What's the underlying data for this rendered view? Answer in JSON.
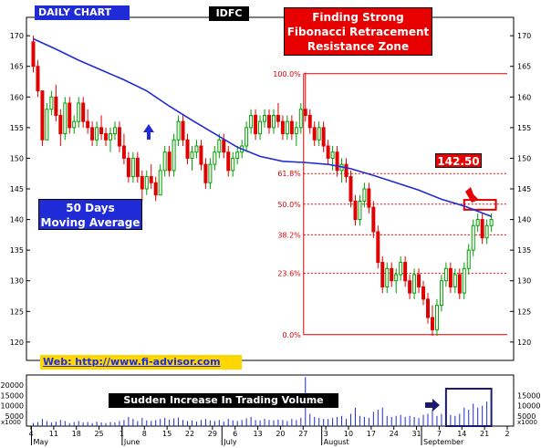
{
  "header": {
    "chart_period_label": "DAILY CHART",
    "ticker": "IDFC",
    "title_lines": [
      "Finding Strong",
      "Fibonacci Retracement",
      "Resistance Zone"
    ]
  },
  "annotations": {
    "ma_label_lines": [
      "50 Days",
      "Moving Average"
    ],
    "price_tag": "142.50",
    "web_link": "Web: http://www.fi-advisor.com",
    "volume_note": "Sudden Increase In Trading Volume"
  },
  "colors": {
    "up": "#00a000",
    "down": "#e00000",
    "ma": "#1f2bd6",
    "fib_line": "#e00000",
    "volume": "#1f2bd6",
    "label_bg_blue": "#1f2bd6",
    "label_bg_red": "#e60000",
    "web_bg": "#ffd700",
    "arrow_blue": "#1f2bd6",
    "arrow_red": "#e60000"
  },
  "chart_data": {
    "type": "candlestick",
    "price_axis": {
      "min": 117,
      "max": 173,
      "ticks": [
        120,
        125,
        130,
        135,
        140,
        145,
        150,
        155,
        160,
        165,
        170
      ],
      "both_sides": true
    },
    "volume_axis": {
      "ticks_left": [
        "20000",
        "15000",
        "10000",
        "5000",
        "x1000"
      ],
      "ticks_right": [
        "15000",
        "10000",
        "5000",
        "x1000"
      ],
      "tick_values": [
        20000,
        15000,
        10000,
        5000
      ],
      "max": 25000
    },
    "date_ticks": [
      "4",
      "11",
      "18",
      "25",
      "1",
      "8",
      "15",
      "22",
      "29",
      "6",
      "13",
      "20",
      "27",
      "3",
      "10",
      "17",
      "24",
      "31",
      "7",
      "14",
      "21",
      "2"
    ],
    "month_labels": [
      "May",
      "June",
      "July",
      "August",
      "September"
    ],
    "month_label_day_index": [
      0,
      20,
      42,
      64,
      86
    ],
    "total_days": 105,
    "fibonacci_levels": [
      {
        "label": "100.0%",
        "value": 163.8
      },
      {
        "label": "61.8%",
        "value": 147.5
      },
      {
        "label": "50.0%",
        "value": 142.5
      },
      {
        "label": "38.2%",
        "value": 137.5
      },
      {
        "label": "23.6%",
        "value": 131.2
      },
      {
        "label": "0.0%",
        "value": 121.2
      }
    ],
    "fib_start_day": 60,
    "resistance_zone": {
      "low": 141.6,
      "high": 143.2,
      "day_from": 95,
      "day_to": 102
    },
    "volume_highlight": {
      "day_from": 91,
      "day_to": 101
    },
    "moving_average_50": [
      [
        0,
        169.5
      ],
      [
        5,
        167.8
      ],
      [
        10,
        166.0
      ],
      [
        15,
        164.4
      ],
      [
        20,
        162.8
      ],
      [
        25,
        161.0
      ],
      [
        30,
        158.5
      ],
      [
        35,
        156.2
      ],
      [
        40,
        154.0
      ],
      [
        45,
        151.8
      ],
      [
        50,
        150.3
      ],
      [
        55,
        149.5
      ],
      [
        60,
        149.3
      ],
      [
        65,
        149.0
      ],
      [
        70,
        148.3
      ],
      [
        75,
        147.2
      ],
      [
        80,
        146.0
      ],
      [
        85,
        144.8
      ],
      [
        90,
        143.3
      ],
      [
        95,
        142.2
      ],
      [
        101,
        140.5
      ]
    ],
    "ohlc": [
      [
        169,
        170,
        164,
        165
      ],
      [
        165,
        166,
        160,
        161
      ],
      [
        161,
        161,
        152,
        153
      ],
      [
        153,
        159,
        153,
        158
      ],
      [
        158,
        161,
        157,
        160
      ],
      [
        160,
        162,
        156,
        157
      ],
      [
        157,
        158,
        152,
        154
      ],
      [
        154,
        160,
        153,
        159
      ],
      [
        159,
        160,
        154,
        155
      ],
      [
        155,
        157,
        154,
        156
      ],
      [
        156,
        160,
        155,
        159
      ],
      [
        159,
        160,
        155,
        156
      ],
      [
        156,
        158,
        154,
        155
      ],
      [
        155,
        156,
        152,
        153
      ],
      [
        153,
        156,
        152,
        155
      ],
      [
        155,
        157,
        153,
        154
      ],
      [
        154,
        155,
        152,
        153
      ],
      [
        153,
        155,
        151,
        154
      ],
      [
        154,
        156,
        153,
        155
      ],
      [
        155,
        156,
        151,
        152
      ],
      [
        152,
        154,
        149,
        150
      ],
      [
        150,
        151,
        146,
        147
      ],
      [
        147,
        151,
        146,
        150
      ],
      [
        150,
        151,
        146,
        147
      ],
      [
        147,
        148,
        143,
        145
      ],
      [
        145,
        148,
        144,
        147
      ],
      [
        147,
        149,
        145,
        146
      ],
      [
        146,
        147,
        143,
        144
      ],
      [
        144,
        149,
        144,
        148
      ],
      [
        148,
        152,
        147,
        151
      ],
      [
        151,
        152,
        147,
        148
      ],
      [
        148,
        154,
        147,
        153
      ],
      [
        153,
        157,
        152,
        156
      ],
      [
        156,
        157,
        152,
        153
      ],
      [
        153,
        154,
        149,
        150
      ],
      [
        150,
        152,
        148,
        151
      ],
      [
        151,
        153,
        150,
        152
      ],
      [
        152,
        153,
        148,
        149
      ],
      [
        149,
        150,
        145,
        146
      ],
      [
        146,
        150,
        145,
        149
      ],
      [
        149,
        152,
        148,
        151
      ],
      [
        151,
        154,
        150,
        153
      ],
      [
        153,
        154,
        150,
        151
      ],
      [
        151,
        152,
        147,
        148
      ],
      [
        148,
        151,
        147,
        150
      ],
      [
        150,
        152,
        149,
        151
      ],
      [
        151,
        153,
        150,
        152
      ],
      [
        152,
        156,
        151,
        155
      ],
      [
        155,
        158,
        154,
        157
      ],
      [
        157,
        158,
        153,
        154
      ],
      [
        154,
        157,
        153,
        156
      ],
      [
        156,
        158,
        155,
        157
      ],
      [
        157,
        158,
        154,
        155
      ],
      [
        155,
        158,
        154,
        157
      ],
      [
        157,
        159,
        155,
        156
      ],
      [
        156,
        157,
        153,
        154
      ],
      [
        154,
        157,
        153,
        156
      ],
      [
        156,
        157,
        153,
        154
      ],
      [
        154,
        156,
        152,
        155
      ],
      [
        155,
        159,
        154,
        158
      ],
      [
        158,
        164,
        156,
        157
      ],
      [
        157,
        158,
        154,
        155
      ],
      [
        155,
        156,
        152,
        153
      ],
      [
        153,
        156,
        152,
        155
      ],
      [
        155,
        156,
        151,
        152
      ],
      [
        152,
        153,
        149,
        150
      ],
      [
        150,
        152,
        148,
        151
      ],
      [
        151,
        152,
        147,
        148
      ],
      [
        148,
        150,
        146,
        149
      ],
      [
        149,
        150,
        146,
        147
      ],
      [
        147,
        148,
        142,
        143
      ],
      [
        143,
        144,
        139,
        140
      ],
      [
        140,
        144,
        139,
        143
      ],
      [
        143,
        146,
        142,
        145
      ],
      [
        145,
        146,
        141,
        142
      ],
      [
        142,
        143,
        137,
        138
      ],
      [
        138,
        139,
        132,
        133
      ],
      [
        133,
        134,
        128,
        129
      ],
      [
        129,
        133,
        128,
        132
      ],
      [
        132,
        133,
        129,
        130
      ],
      [
        130,
        132,
        128,
        131
      ],
      [
        131,
        134,
        130,
        133
      ],
      [
        133,
        134,
        129,
        130
      ],
      [
        130,
        131,
        127,
        128
      ],
      [
        128,
        132,
        127,
        131
      ],
      [
        131,
        132,
        128,
        129
      ],
      [
        129,
        130,
        126,
        127
      ],
      [
        127,
        128,
        123,
        124
      ],
      [
        124,
        126,
        121,
        122
      ],
      [
        122,
        127,
        121,
        126
      ],
      [
        126,
        131,
        125,
        130
      ],
      [
        130,
        133,
        129,
        132
      ],
      [
        132,
        133,
        128,
        129
      ],
      [
        129,
        132,
        128,
        131
      ],
      [
        131,
        132,
        127,
        128
      ],
      [
        128,
        133,
        127,
        132
      ],
      [
        132,
        136,
        131,
        135
      ],
      [
        135,
        140,
        134,
        139
      ],
      [
        139,
        141,
        138,
        140
      ],
      [
        140,
        141,
        136,
        137
      ],
      [
        137,
        140,
        136,
        139
      ],
      [
        139,
        141,
        138,
        140
      ]
    ],
    "volume": [
      1500,
      2000,
      3500,
      2500,
      1800,
      2200,
      3000,
      2500,
      1500,
      2000,
      2500,
      1800,
      2000,
      1500,
      2200,
      1800,
      1500,
      2000,
      1800,
      2500,
      3000,
      4500,
      3500,
      2500,
      4000,
      2800,
      2500,
      3000,
      3500,
      4000,
      3200,
      3800,
      4200,
      3000,
      2500,
      2800,
      2200,
      3000,
      3500,
      2800,
      2500,
      3000,
      2200,
      3500,
      2800,
      2500,
      3000,
      3800,
      4500,
      3000,
      2800,
      3500,
      3000,
      2800,
      3200,
      3000,
      2500,
      3500,
      3000,
      4000,
      24000,
      6000,
      4500,
      4000,
      3500,
      3500,
      4000,
      4500,
      5000,
      3500,
      6000,
      9000,
      5000,
      4500,
      4000,
      7000,
      8000,
      9000,
      5000,
      4500,
      5000,
      5500,
      4500,
      5000,
      4500,
      4000,
      5500,
      6000,
      8000,
      5000,
      6000,
      7000,
      5500,
      5000,
      6000,
      9000,
      8000,
      11000,
      9000,
      10000,
      12000,
      9000
    ]
  }
}
